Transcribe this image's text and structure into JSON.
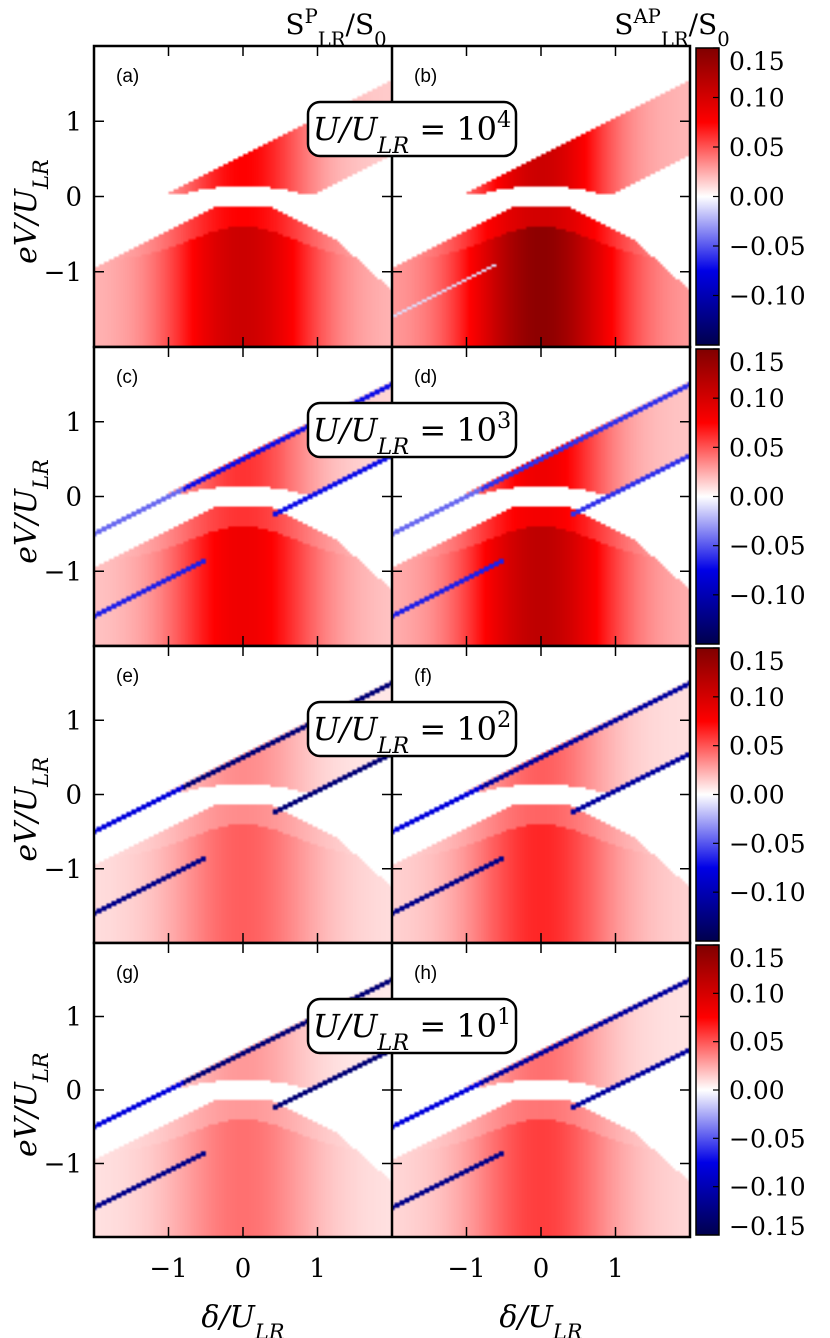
{
  "chart_data": {
    "type": "heatmap",
    "columns": [
      {
        "title": "S_LR^P/S_0",
        "title_main": "S",
        "title_sup": "P",
        "title_sub": "LR",
        "title_rest": "/S",
        "title_rest_sub": "0"
      },
      {
        "title": "S_LR^AP/S_0",
        "title_main": "S",
        "title_sup": "AP",
        "title_sub": "LR",
        "title_rest": "/S",
        "title_rest_sub": "0"
      }
    ],
    "rows": [
      {
        "ratio_label": "U/U_LR = 10^4",
        "lhs": "U/U",
        "lhs_sub": "LR",
        "rhs": " = 10",
        "exp": "4",
        "panels": [
          "(a)",
          "(b)"
        ],
        "line_strength": 0.0,
        "red_strength": 1.0
      },
      {
        "ratio_label": "U/U_LR = 10^3",
        "lhs": "U/U",
        "lhs_sub": "LR",
        "rhs": " = 10",
        "exp": "3",
        "panels": [
          "(c)",
          "(d)"
        ],
        "line_strength": 0.55,
        "red_strength": 0.8
      },
      {
        "ratio_label": "U/U_LR = 10^2",
        "lhs": "U/U",
        "lhs_sub": "LR",
        "rhs": " = 10",
        "exp": "2",
        "panels": [
          "(e)",
          "(f)"
        ],
        "line_strength": 1.0,
        "red_strength": 0.45
      },
      {
        "ratio_label": "U/U_LR = 10^1",
        "lhs": "U/U",
        "lhs_sub": "LR",
        "rhs": " = 10",
        "exp": "1",
        "panels": [
          "(g)",
          "(h)"
        ],
        "line_strength": 1.0,
        "red_strength": 0.4
      }
    ],
    "xlabel": "δ/U_LR",
    "xlabel_main": "δ/U",
    "xlabel_sub": "LR",
    "ylabel": "eV/U_LR",
    "ylabel_main": "eV/U",
    "ylabel_sub": "LR",
    "xlim": [
      -2,
      2
    ],
    "ylim": [
      -2,
      2
    ],
    "xticks": [
      -1,
      0,
      1
    ],
    "yticks": [
      1,
      0,
      -1
    ],
    "xtick_labels": [
      "−1",
      "0",
      "1"
    ],
    "ytick_labels": [
      "1",
      "0",
      "−1"
    ],
    "colorbar": {
      "vmin": -0.15,
      "vmax": 0.15,
      "ticks": [
        0.15,
        0.1,
        0.05,
        0.0,
        -0.05,
        -0.1
      ],
      "tick_labels": [
        "0.15",
        "0.10",
        "0.05",
        "0.00",
        "−0.05",
        "−0.10"
      ],
      "last_bottom_label": "−0.15",
      "colormap": "seismic",
      "low_color": "#00004d",
      "mid_color": "#ffffff",
      "high_color": "#800000"
    }
  }
}
